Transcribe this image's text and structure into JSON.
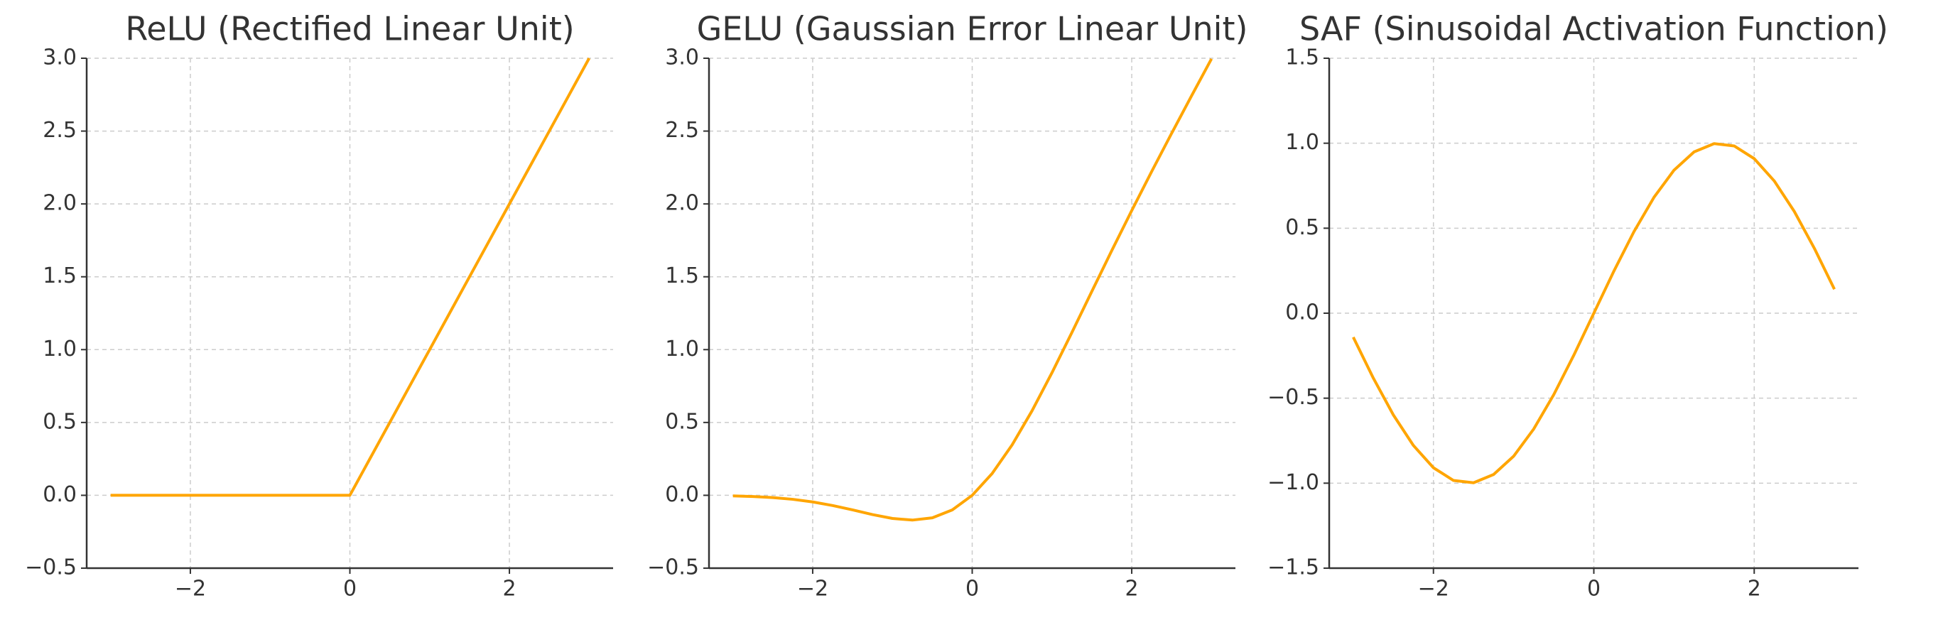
{
  "chart_data": [
    {
      "type": "line",
      "title": "ReLU (Rectified Linear Unit)",
      "x": [
        -3,
        -2.75,
        -2.5,
        -2.25,
        -2,
        -1.75,
        -1.5,
        -1.25,
        -1,
        -0.75,
        -0.5,
        -0.25,
        0,
        0.25,
        0.5,
        0.75,
        1,
        1.25,
        1.5,
        1.75,
        2,
        2.25,
        2.5,
        2.75,
        3
      ],
      "series": [
        {
          "color": "#ffa500",
          "values": [
            0,
            0,
            0,
            0,
            0,
            0,
            0,
            0,
            0,
            0,
            0,
            0,
            0,
            0.25,
            0.5,
            0.75,
            1,
            1.25,
            1.5,
            1.75,
            2,
            2.25,
            2.5,
            2.75,
            3
          ]
        }
      ],
      "xlim": [
        -3.3,
        3.3
      ],
      "xticks": [
        {
          "value": -2,
          "label": "−2"
        },
        0,
        2
      ],
      "ylim": [
        -0.5,
        3
      ],
      "yticks": [
        {
          "value": -0.5,
          "label": "−0.5"
        },
        {
          "value": 0,
          "label": "0.0"
        },
        0.5,
        {
          "value": 1,
          "label": "1.0"
        },
        1.5,
        {
          "value": 2,
          "label": "2.0"
        },
        2.5,
        {
          "value": 3,
          "label": "3.0"
        }
      ],
      "grid": true
    },
    {
      "type": "line",
      "title": "GELU (Gaussian Error Linear Unit)",
      "x": [
        -3,
        -2.75,
        -2.5,
        -2.25,
        -2,
        -1.75,
        -1.5,
        -1.25,
        -1,
        -0.75,
        -0.5,
        -0.25,
        0,
        0.25,
        0.5,
        0.75,
        1,
        1.25,
        1.5,
        1.75,
        2,
        2.25,
        2.5,
        2.75,
        3
      ],
      "series": [
        {
          "color": "#ffa500",
          "values": [
            -0.004,
            -0.0082,
            -0.0155,
            -0.0275,
            -0.0455,
            -0.0701,
            -0.1002,
            -0.1321,
            -0.1587,
            -0.17,
            -0.1543,
            -0.1003,
            0,
            0.1497,
            0.3457,
            0.58,
            0.8413,
            1.1179,
            1.3998,
            1.6799,
            1.9545,
            2.2225,
            2.4845,
            2.7418,
            2.996
          ]
        }
      ],
      "xlim": [
        -3.3,
        3.3
      ],
      "xticks": [
        {
          "value": -2,
          "label": "−2"
        },
        0,
        2
      ],
      "ylim": [
        -0.5,
        3
      ],
      "yticks": [
        {
          "value": -0.5,
          "label": "−0.5"
        },
        {
          "value": 0,
          "label": "0.0"
        },
        0.5,
        {
          "value": 1,
          "label": "1.0"
        },
        1.5,
        {
          "value": 2,
          "label": "2.0"
        },
        2.5,
        {
          "value": 3,
          "label": "3.0"
        }
      ],
      "grid": true
    },
    {
      "type": "line",
      "title": "SAF (Sinusoidal Activation Function)",
      "x": [
        -3,
        -2.75,
        -2.5,
        -2.25,
        -2,
        -1.75,
        -1.5,
        -1.25,
        -1,
        -0.75,
        -0.5,
        -0.25,
        0,
        0.25,
        0.5,
        0.75,
        1,
        1.25,
        1.5,
        1.75,
        2,
        2.25,
        2.5,
        2.75,
        3
      ],
      "series": [
        {
          "color": "#ffa500",
          "values": [
            -0.1411,
            -0.3817,
            -0.5985,
            -0.7781,
            -0.9093,
            -0.984,
            -0.9975,
            -0.949,
            -0.8415,
            -0.6816,
            -0.4794,
            -0.2474,
            0,
            0.2474,
            0.4794,
            0.6816,
            0.8415,
            0.949,
            0.9975,
            0.984,
            0.9093,
            0.7781,
            0.5985,
            0.3817,
            0.1411
          ]
        }
      ],
      "xlim": [
        -3.3,
        3.3
      ],
      "xticks": [
        {
          "value": -2,
          "label": "−2"
        },
        0,
        2
      ],
      "ylim": [
        -1.5,
        1.5
      ],
      "yticks": [
        {
          "value": -1.5,
          "label": "−1.5"
        },
        {
          "value": -1,
          "label": "−1.0"
        },
        {
          "value": -0.5,
          "label": "−0.5"
        },
        {
          "value": 0,
          "label": "0.0"
        },
        0.5,
        {
          "value": 1,
          "label": "1.0"
        },
        1.5
      ],
      "grid": true
    }
  ]
}
